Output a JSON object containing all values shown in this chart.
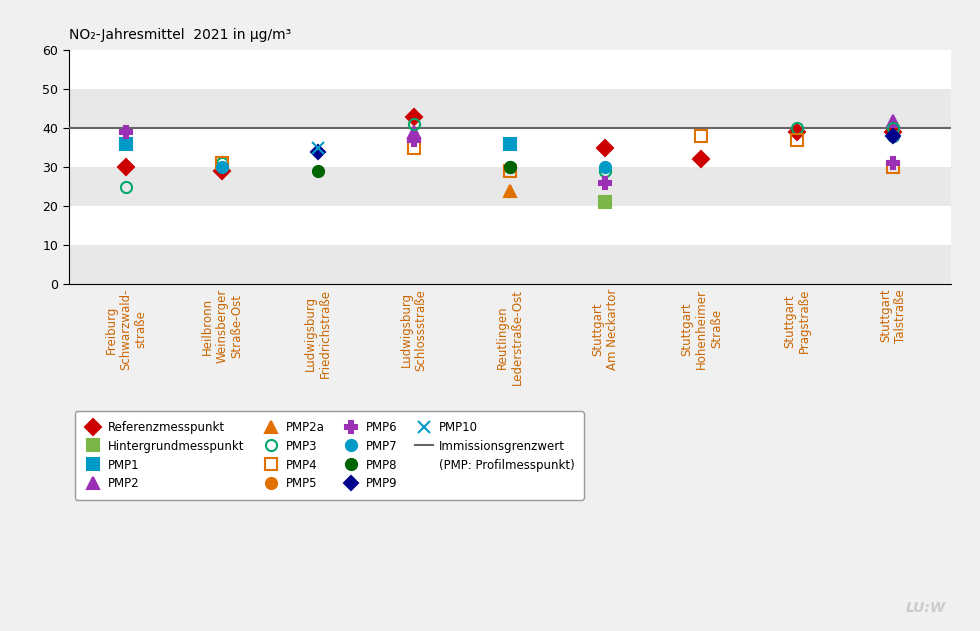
{
  "title": "NO₂-Jahresmittel  2021 in μg/m³",
  "ylim": [
    0,
    60
  ],
  "yticks": [
    0,
    10,
    20,
    30,
    40,
    50,
    60
  ],
  "immissionsgrenzwert": 40,
  "stations": [
    "Freiburg\nSchwarzwald-\nstraße",
    "Heilbronn\nWeinsberger\nStraße-Ost",
    "Ludwigsburg\nFriedrichstraße",
    "Ludwigsburg\nSchlossstraße",
    "Reutlingen\nLederstraße-Ost",
    "Stuttgart\nAm Neckartor",
    "Stuttgart\nHohenheimer\nStraße",
    "Stuttgart\nPragstraße",
    "Stuttgart\nTalstraße"
  ],
  "series": [
    {
      "name": "Referenzmesspunkt",
      "color": "#cc0000",
      "marker": "D",
      "markersize": 8,
      "fillstyle": "full",
      "data": {
        "0": 30,
        "1": 29,
        "3": 43,
        "5": 35,
        "6": 32,
        "7": 39,
        "8": 39
      }
    },
    {
      "name": "Hintergrundmesspunkt",
      "color": "#7ab648",
      "marker": "s",
      "markersize": 8,
      "fillstyle": "full",
      "data": {
        "5": 21
      }
    },
    {
      "name": "PMP1",
      "color": "#009ac7",
      "marker": "s",
      "markersize": 8,
      "fillstyle": "full",
      "data": {
        "0": 36,
        "4": 36
      }
    },
    {
      "name": "PMP2",
      "color": "#9b30b5",
      "marker": "^",
      "markersize": 8,
      "fillstyle": "full",
      "data": {
        "3": 39,
        "8": 42
      }
    },
    {
      "name": "PMP2a",
      "color": "#e07000",
      "marker": "^",
      "markersize": 8,
      "fillstyle": "full",
      "data": {
        "4": 24
      }
    },
    {
      "name": "PMP3",
      "color": "#00a86b",
      "marker": "o",
      "markersize": 8,
      "fillstyle": "none",
      "data": {
        "0": 25,
        "1": 31,
        "3": 41,
        "4": 30,
        "5": 29,
        "7": 40,
        "8": 40
      }
    },
    {
      "name": "PMP4",
      "color": "#e07000",
      "marker": "s",
      "markersize": 8,
      "fillstyle": "none",
      "data": {
        "1": 31,
        "3": 35,
        "4": 29,
        "6": 38,
        "7": 37,
        "8": 30
      }
    },
    {
      "name": "PMP5",
      "color": "#e07000",
      "marker": "o",
      "markersize": 8,
      "fillstyle": "full",
      "data": {
        "8": 38
      }
    },
    {
      "name": "PMP6",
      "color": "#9b30b5",
      "marker": "P",
      "markersize": 9,
      "fillstyle": "full",
      "data": {
        "0": 39,
        "3": 37,
        "5": 26,
        "8": 31
      }
    },
    {
      "name": "PMP7",
      "color": "#009ac7",
      "marker": "o",
      "markersize": 8,
      "fillstyle": "full",
      "data": {
        "1": 30,
        "5": 30,
        "8": 38
      }
    },
    {
      "name": "PMP8",
      "color": "#006400",
      "marker": "o",
      "markersize": 8,
      "fillstyle": "full",
      "data": {
        "2": 29,
        "4": 30
      }
    },
    {
      "name": "PMP9",
      "color": "#00008b",
      "marker": "D",
      "markersize": 7,
      "fillstyle": "full",
      "data": {
        "2": 34,
        "8": 38
      }
    },
    {
      "name": "PMP10",
      "color": "#009ac7",
      "marker": "x",
      "markersize": 9,
      "fillstyle": "full",
      "data": {
        "2": 35
      }
    }
  ],
  "band_colors": [
    "#e8e8e8",
    "#ffffff"
  ],
  "bg_color": "#f0f0f0",
  "immission_line_color": "#666666",
  "legend_order": [
    "Referenzmesspunkt",
    "Hintergrundmesspunkt",
    "PMP1",
    "PMP2",
    "PMP2a",
    "PMP3",
    "PMP4",
    "PMP5",
    "PMP6",
    "PMP7",
    "PMP8",
    "PMP9",
    "PMP10",
    "Immissionsgrenzwert",
    "(PMP: Profilmesspunkt)",
    ""
  ]
}
